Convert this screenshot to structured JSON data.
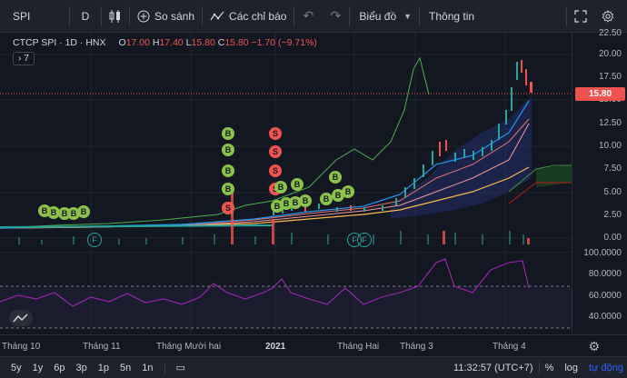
{
  "toolbar": {
    "symbol": "SPI",
    "resolution": "D",
    "compare_label": "So sánh",
    "indicators_label": "Các chỉ báo",
    "chart_label": "Biểu đồ",
    "info_label": "Thông tin"
  },
  "legend": {
    "name": "CTCP SPI · 1D · HNX",
    "open_key": "O",
    "open": "17.00",
    "high_key": "H",
    "high": "17.40",
    "low_key": "L",
    "low": "15.80",
    "close_key": "C",
    "close": "15.80",
    "change": "−1.70 (−9.71%)",
    "collapsed_count": "7"
  },
  "price_axis": {
    "labels": [
      "22.50",
      "20.00",
      "17.50",
      "15.00",
      "12.50",
      "10.00",
      "7.50",
      "5.00",
      "2.50",
      "0.00"
    ],
    "current_price": "15.80"
  },
  "rsi_axis": {
    "labels": [
      "100.0000",
      "80.0000",
      "60.0000",
      "40.0000"
    ]
  },
  "time_axis": {
    "labels": [
      "Tháng 10",
      "Tháng 11",
      "Tháng Mười hai",
      "2021",
      "Tháng Hai",
      "Tháng 3",
      "Tháng 4"
    ]
  },
  "bottombar": {
    "ranges": [
      "5y",
      "1y",
      "6p",
      "3p",
      "1p",
      "5n",
      "1n"
    ],
    "clock": "11:32:57 (UTC+7)",
    "percent": "%",
    "log": "log",
    "auto": "tự động"
  },
  "markers": {
    "buy": "B",
    "sell": "S",
    "fund": "F"
  },
  "colors": {
    "up": "#26a69a",
    "down": "#ef5350",
    "background": "#131722",
    "buy_marker": "#8bc34a",
    "sell_marker": "#ef5350",
    "rsi_line": "#9c27b0"
  }
}
